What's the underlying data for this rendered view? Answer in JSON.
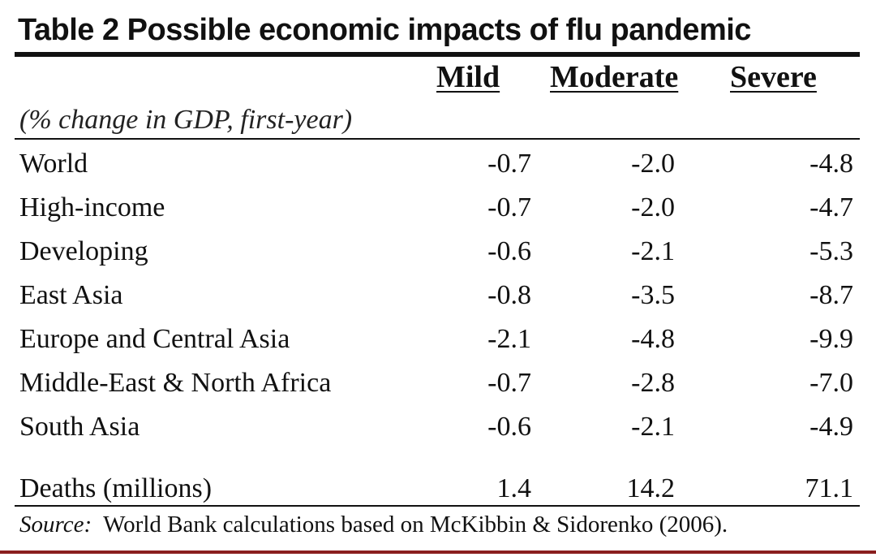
{
  "title": "Table 2 Possible economic impacts of flu pandemic",
  "columns": [
    "Mild",
    "Moderate",
    "Severe"
  ],
  "unit_note": "(% change in GDP, first-year)",
  "rows": [
    {
      "label": "World",
      "mild": "-0.7",
      "moderate": "-2.0",
      "severe": "-4.8"
    },
    {
      "label": "High-income",
      "mild": "-0.7",
      "moderate": "-2.0",
      "severe": "-4.7"
    },
    {
      "label": "Developing",
      "mild": "-0.6",
      "moderate": "-2.1",
      "severe": "-5.3"
    },
    {
      "label": "East Asia",
      "mild": "-0.8",
      "moderate": "-3.5",
      "severe": "-8.7"
    },
    {
      "label": "Europe and Central Asia",
      "mild": "-2.1",
      "moderate": "-4.8",
      "severe": "-9.9"
    },
    {
      "label": "Middle-East & North Africa",
      "mild": "-0.7",
      "moderate": "-2.8",
      "severe": "-7.0"
    },
    {
      "label": "South Asia",
      "mild": "-0.6",
      "moderate": "-2.1",
      "severe": "-4.9"
    },
    {
      "label": "Deaths (millions)",
      "mild": "1.4",
      "moderate": "14.2",
      "severe": "71.1"
    }
  ],
  "source": {
    "label": "Source:",
    "text": "World Bank calculations based on McKibbin & Sidorenko (2006)."
  },
  "colors": {
    "text": "#111111",
    "bottom_bar": "#8a1e1e"
  }
}
